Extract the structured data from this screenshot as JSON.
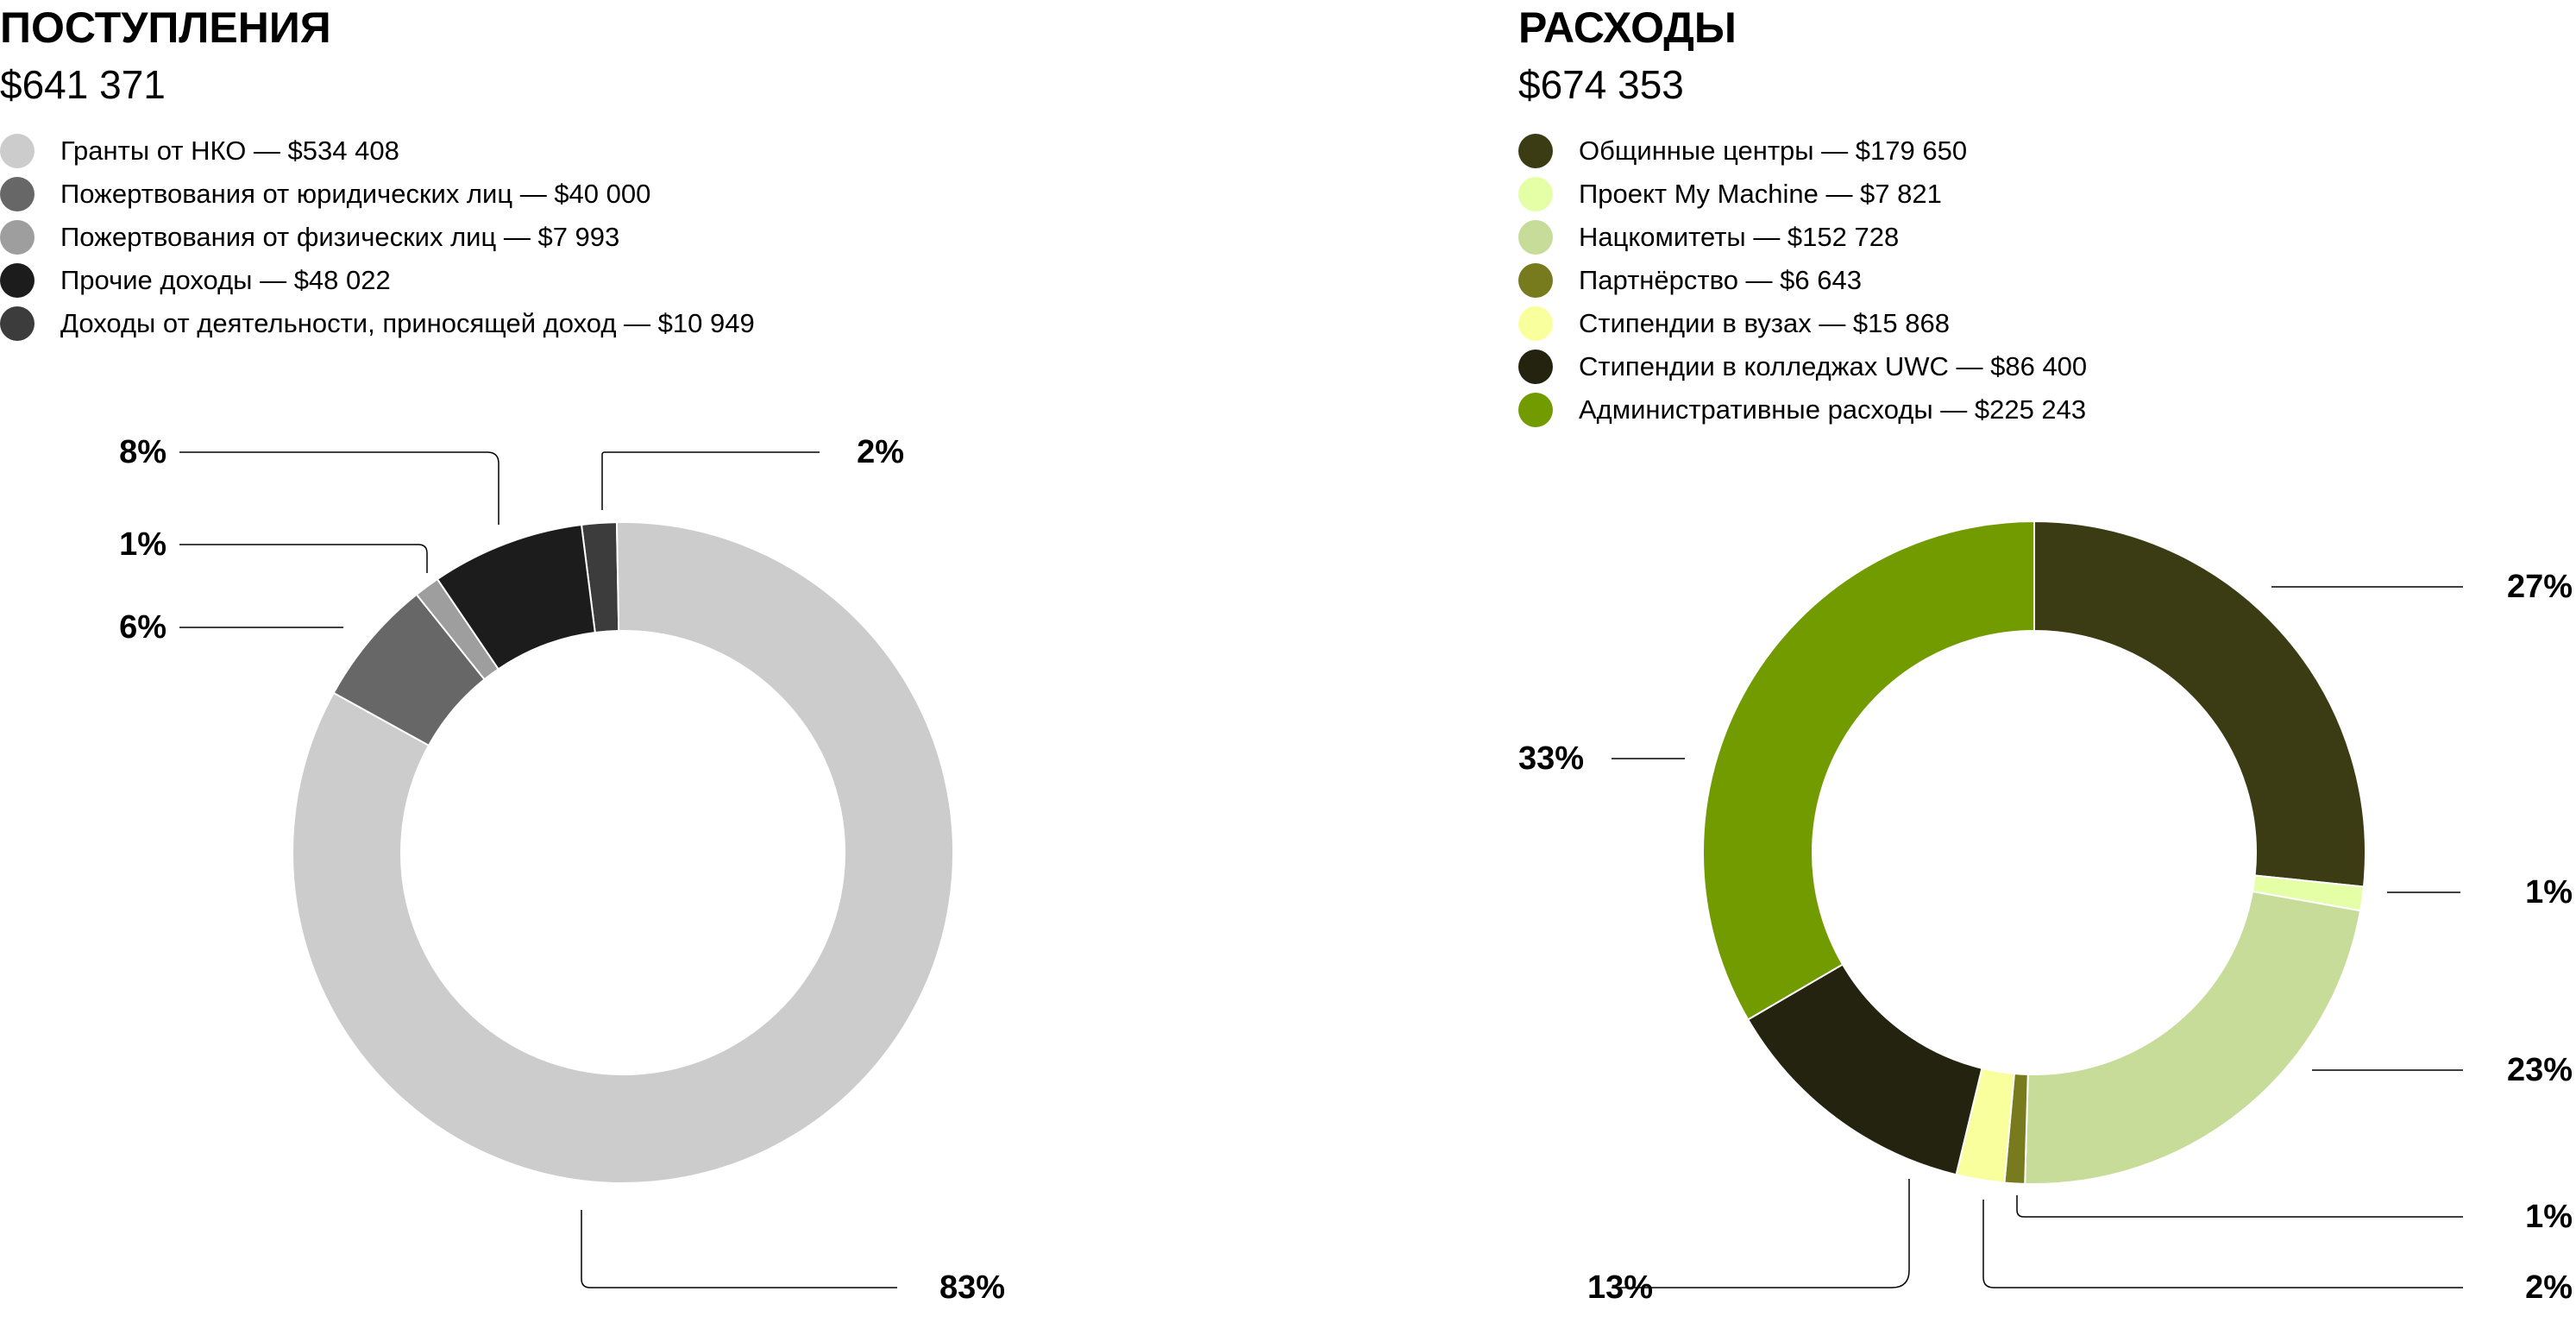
{
  "income": {
    "title": "ПОСТУПЛЕНИЯ",
    "total": "$641 371",
    "legend": [
      {
        "label": "Гранты от НКО — $534 408",
        "color": "#cccccc"
      },
      {
        "label": "Пожертвования от юридических лиц —   $40 000",
        "color": "#676767"
      },
      {
        "label": "Пожертвования от физических лиц — $7 993",
        "color": "#9e9e9e"
      },
      {
        "label": "Прочие доходы — $48 022",
        "color": "#1c1c1c"
      },
      {
        "label": "Доходы от деятельности, приносящей доход — $10 949",
        "color": "#3c3c3c"
      }
    ]
  },
  "expenses": {
    "title": "РАСХОДЫ",
    "total": "$674 353",
    "legend": [
      {
        "label": "Общинные центры — $179 650",
        "color": "#3c3c14"
      },
      {
        "label": "Проект My Machine — $7 821",
        "color": "#e4ffa6"
      },
      {
        "label": "Нацкомитеты — $152 728",
        "color": "#c8dc9a"
      },
      {
        "label": "Партнёрство — $6 643",
        "color": "#787a1e"
      },
      {
        "label": "Стипендии в вузах — $15 868",
        "color": "#faff9e"
      },
      {
        "label": "Стипендии в колледжах UWC — $86 400",
        "color": "#23230f"
      },
      {
        "label": "Административные расходы — $225 243",
        "color": "#729b00"
      }
    ]
  },
  "chart_data": [
    {
      "type": "pie",
      "title": "ПОСТУПЛЕНИЯ",
      "categories": [
        "Доходы от деятельности, приносящей доход",
        "Гранты от НКО",
        "Пожертвования от юридических лиц",
        "Пожертвования от физических лиц",
        "Прочие доходы"
      ],
      "values": [
        10949,
        534408,
        40000,
        7993,
        48022
      ],
      "labels": [
        "2%",
        "83%",
        "6%",
        "1%",
        "8%"
      ],
      "colors": [
        "#3c3c3c",
        "#cccccc",
        "#676767",
        "#9e9e9e",
        "#1c1c1c"
      ],
      "donut": true,
      "legend": "top-left"
    },
    {
      "type": "pie",
      "title": "РАСХОДЫ",
      "categories": [
        "Общинные центры",
        "Проект My Machine",
        "Нацкомитеты",
        "Партнёрство",
        "Стипендии в вузах",
        "Стипендии в колледжах UWC",
        "Административные расходы"
      ],
      "values": [
        179650,
        7821,
        152728,
        6643,
        15868,
        86400,
        225243
      ],
      "labels": [
        "27%",
        "1%",
        "23%",
        "1%",
        "2%",
        "13%",
        "33%"
      ],
      "colors": [
        "#3c3c14",
        "#e4ffa6",
        "#c8dc9a",
        "#787a1e",
        "#faff9e",
        "#23230f",
        "#729b00"
      ],
      "donut": true,
      "legend": "top-left"
    }
  ]
}
